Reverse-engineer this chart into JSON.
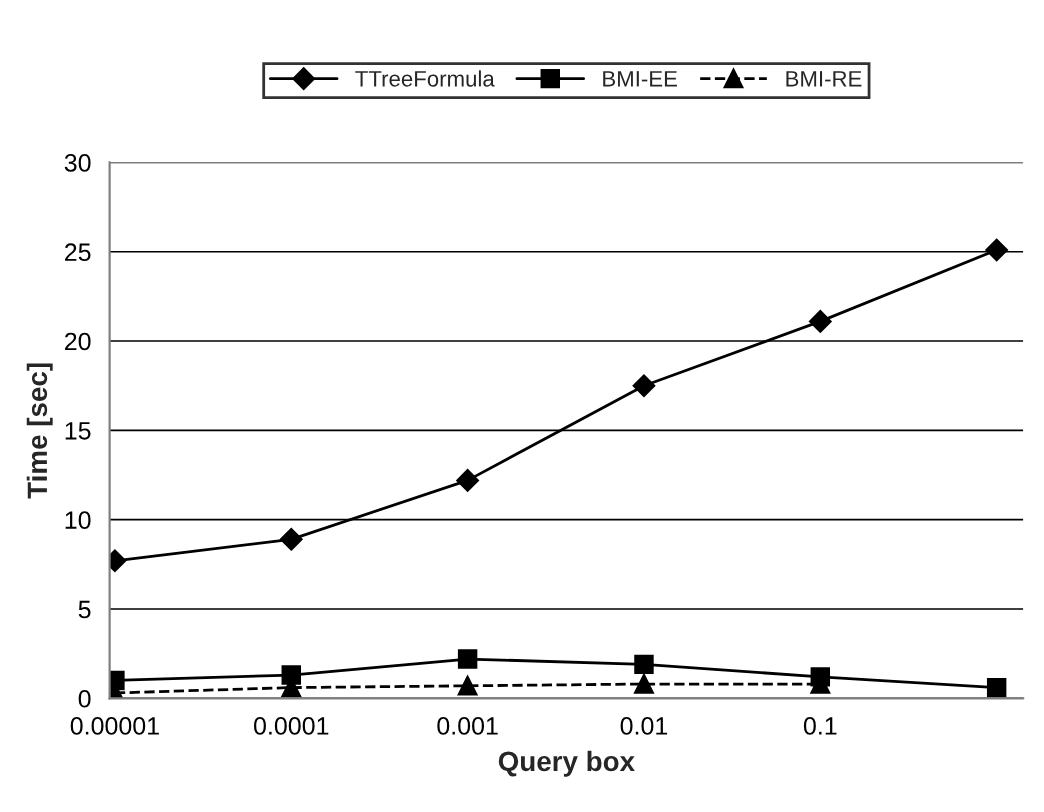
{
  "chart_data": {
    "type": "line",
    "xlabel": "Query box",
    "ylabel": "Time [sec]",
    "categories": [
      "0.00001",
      "0.0001",
      "0.001",
      "0.01",
      "0.1",
      null
    ],
    "series": [
      {
        "name": "TTreeFormula",
        "color": "#000000",
        "marker": "diamond",
        "line_style": "solid",
        "values": [
          7.7,
          8.9,
          12.2,
          17.5,
          21.1,
          25.1
        ]
      },
      {
        "name": "BMI-EE",
        "color": "#000000",
        "marker": "square",
        "line_style": "solid",
        "values": [
          1.0,
          1.3,
          2.2,
          1.9,
          1.2,
          0.6
        ]
      },
      {
        "name": "BMI-RE",
        "color": "#000000",
        "marker": "triangle",
        "line_style": "dashed",
        "values": [
          0.3,
          0.6,
          0.7,
          0.8,
          0.8,
          null
        ]
      }
    ],
    "ylim": [
      0,
      30
    ],
    "yticks": [
      0,
      5,
      10,
      15,
      20,
      25,
      30
    ],
    "grid": "y",
    "legend": "top"
  }
}
